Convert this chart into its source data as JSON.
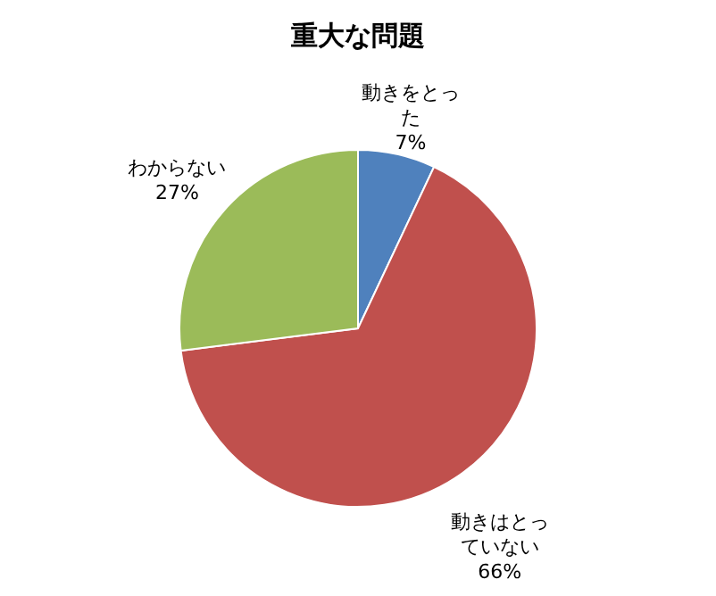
{
  "chart_data": {
    "type": "pie",
    "title": "重大な問題",
    "categories": [
      "動きをとった",
      "動きはとっていない",
      "わからない"
    ],
    "values": [
      7,
      66,
      27
    ],
    "value_labels": [
      "7%",
      "66%",
      "27%"
    ],
    "colors": [
      "#4f81bd",
      "#c0504d",
      "#9bbb59"
    ],
    "legend": false
  }
}
